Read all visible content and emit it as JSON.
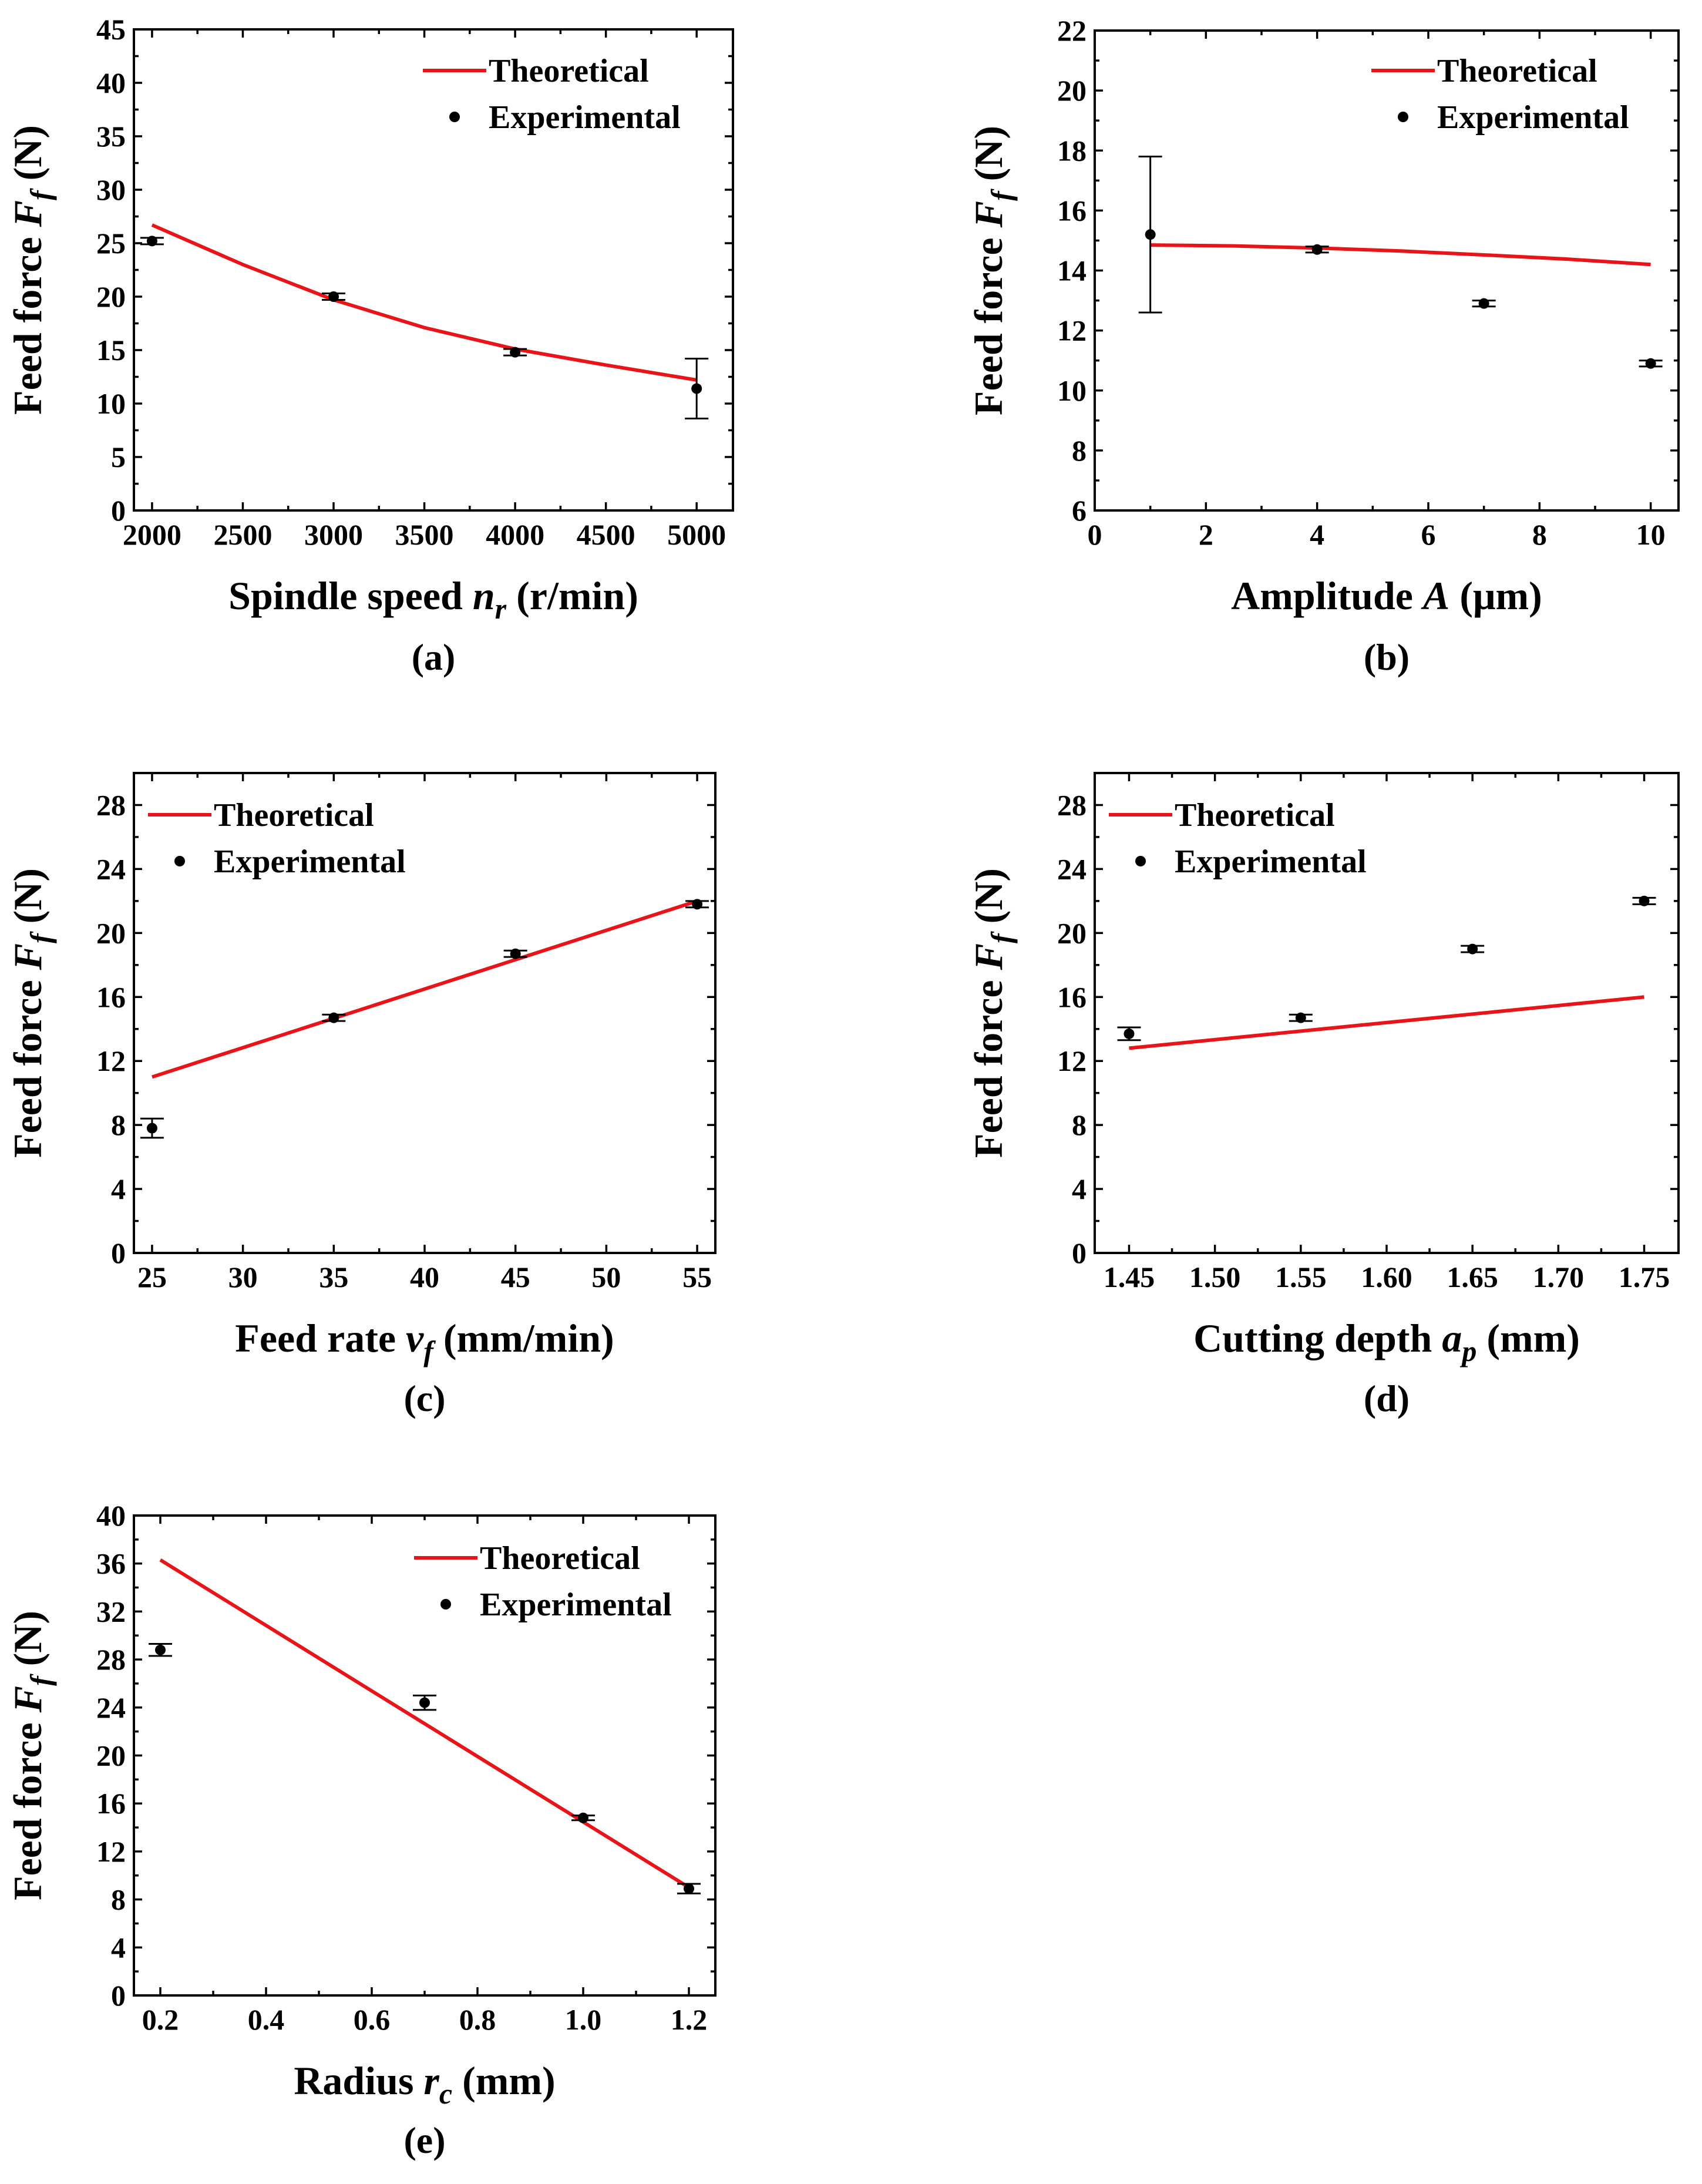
{
  "colors": {
    "theoretical": "#e8141a",
    "experimental": "#000000"
  },
  "chart_data": [
    {
      "id": "a",
      "type": "line",
      "panel_label": "(a)",
      "xlabel_main": "Spindle speed ",
      "xlabel_sym": "n",
      "xlabel_sub": "r",
      "xlabel_unit": "  (r/min)",
      "ylabel_main": "Feed  force ",
      "ylabel_sym": "F",
      "ylabel_sub": "f",
      "ylabel_unit": "  (N)",
      "xlim": [
        1900,
        5200
      ],
      "ylim": [
        0,
        45
      ],
      "xticks": [
        2000,
        2500,
        3000,
        3500,
        4000,
        4500,
        5000
      ],
      "xtick_labels": [
        "2000",
        "2500",
        "3000",
        "3500",
        "4000",
        "4500",
        "5000"
      ],
      "yticks": [
        0,
        5,
        10,
        15,
        20,
        25,
        30,
        35,
        40,
        45
      ],
      "ytick_labels": [
        "0",
        "5",
        "10",
        "15",
        "20",
        "25",
        "30",
        "35",
        "40",
        "45"
      ],
      "legend_pos": "top-right",
      "series": [
        {
          "name": "Theoretical",
          "kind": "line",
          "x": [
            2000,
            2500,
            3000,
            3500,
            4000,
            4500,
            5000
          ],
          "y": [
            26.7,
            23.0,
            19.7,
            17.1,
            15.1,
            13.6,
            12.2
          ]
        },
        {
          "name": "Experimental",
          "kind": "scatter",
          "x": [
            2000,
            3000,
            4000,
            5000
          ],
          "y": [
            25.2,
            20.0,
            14.8,
            11.4
          ],
          "yerr": [
            0.3,
            0.3,
            0.3,
            2.8
          ]
        }
      ]
    },
    {
      "id": "b",
      "type": "line",
      "panel_label": "(b)",
      "xlabel_main": "Amplitude ",
      "xlabel_sym": "A",
      "xlabel_sub": "",
      "xlabel_unit": "  (μm)",
      "ylabel_main": "Feed  force ",
      "ylabel_sym": "F",
      "ylabel_sub": "f",
      "ylabel_unit": "  (N)",
      "xlim": [
        0,
        10.5
      ],
      "ylim": [
        6,
        22
      ],
      "xticks": [
        0,
        2,
        4,
        6,
        8,
        10
      ],
      "xtick_labels": [
        "0",
        "2",
        "4",
        "6",
        "8",
        "10"
      ],
      "yticks": [
        6,
        8,
        10,
        12,
        14,
        16,
        18,
        20,
        22
      ],
      "ytick_labels": [
        "6",
        "8",
        "10",
        "12",
        "14",
        "16",
        "18",
        "20",
        "22"
      ],
      "legend_pos": "top-right",
      "series": [
        {
          "name": "Theoretical",
          "kind": "line",
          "x": [
            1,
            2.5,
            4,
            5.5,
            7,
            8.5,
            10
          ],
          "y": [
            14.85,
            14.82,
            14.75,
            14.65,
            14.52,
            14.38,
            14.2
          ]
        },
        {
          "name": "Experimental",
          "kind": "scatter",
          "x": [
            1,
            4,
            7,
            10
          ],
          "y": [
            15.2,
            14.7,
            12.9,
            10.9
          ],
          "yerr": [
            2.6,
            0.1,
            0.1,
            0.1
          ]
        }
      ]
    },
    {
      "id": "c",
      "type": "line",
      "panel_label": "(c)",
      "xlabel_main": "Feed rate ",
      "xlabel_sym": "v",
      "xlabel_sub": "f",
      "xlabel_unit": " (mm/min)",
      "ylabel_main": "Feed  force ",
      "ylabel_sym": "F",
      "ylabel_sub": "f",
      "ylabel_unit": " (N)",
      "xlim": [
        24,
        56
      ],
      "ylim": [
        0,
        30
      ],
      "xticks": [
        25,
        30,
        35,
        40,
        45,
        50,
        55
      ],
      "xtick_labels": [
        "25",
        "30",
        "35",
        "40",
        "45",
        "50",
        "55"
      ],
      "yticks": [
        0,
        4,
        8,
        12,
        16,
        20,
        24,
        28
      ],
      "ytick_labels": [
        "0",
        "4",
        "8",
        "12",
        "16",
        "20",
        "24",
        "28"
      ],
      "legend_pos": "top-left",
      "series": [
        {
          "name": "Theoretical",
          "kind": "line",
          "x": [
            25,
            55
          ],
          "y": [
            11.0,
            22.0
          ]
        },
        {
          "name": "Experimental",
          "kind": "scatter",
          "x": [
            25,
            35,
            45,
            55
          ],
          "y": [
            7.8,
            14.7,
            18.7,
            21.8
          ],
          "yerr": [
            0.6,
            0.2,
            0.2,
            0.2
          ]
        }
      ]
    },
    {
      "id": "d",
      "type": "line",
      "panel_label": "(d)",
      "xlabel_main": "Cutting depth ",
      "xlabel_sym": "a",
      "xlabel_sub": "p",
      "xlabel_unit": " (mm)",
      "ylabel_main": "Feed  force ",
      "ylabel_sym": "F",
      "ylabel_sub": "f",
      "ylabel_unit": " (N)",
      "xlim": [
        1.43,
        1.77
      ],
      "ylim": [
        0,
        30
      ],
      "xticks": [
        1.45,
        1.5,
        1.55,
        1.6,
        1.65,
        1.7,
        1.75
      ],
      "xtick_labels": [
        "1.45",
        "1.50",
        "1.55",
        "1.60",
        "1.65",
        "1.70",
        "1.75"
      ],
      "yticks": [
        0,
        4,
        8,
        12,
        16,
        20,
        24,
        28
      ],
      "ytick_labels": [
        "0",
        "4",
        "8",
        "12",
        "16",
        "20",
        "24",
        "28"
      ],
      "legend_pos": "top-left",
      "series": [
        {
          "name": "Theoretical",
          "kind": "line",
          "x": [
            1.45,
            1.75
          ],
          "y": [
            12.8,
            16.0
          ]
        },
        {
          "name": "Experimental",
          "kind": "scatter",
          "x": [
            1.45,
            1.55,
            1.65,
            1.75
          ],
          "y": [
            13.7,
            14.7,
            19.0,
            22.0
          ],
          "yerr": [
            0.4,
            0.2,
            0.2,
            0.2
          ]
        }
      ]
    },
    {
      "id": "e",
      "type": "line",
      "panel_label": "(e)",
      "xlabel_main": "Radius ",
      "xlabel_sym": "r",
      "xlabel_sub": "c",
      "xlabel_unit": "  (mm)",
      "ylabel_main": "Feed  force ",
      "ylabel_sym": "F",
      "ylabel_sub": "f",
      "ylabel_unit": " (N)",
      "xlim": [
        0.15,
        1.25
      ],
      "ylim": [
        0,
        40
      ],
      "xticks": [
        0.2,
        0.4,
        0.6,
        0.8,
        1.0,
        1.2
      ],
      "xtick_labels": [
        "0.2",
        "0.4",
        "0.6",
        "0.8",
        "1.0",
        "1.2"
      ],
      "yticks": [
        0,
        4,
        8,
        12,
        16,
        20,
        24,
        28,
        32,
        36,
        40
      ],
      "ytick_labels": [
        "0",
        "4",
        "8",
        "12",
        "16",
        "20",
        "24",
        "28",
        "32",
        "36",
        "40"
      ],
      "legend_pos": "top-right",
      "series": [
        {
          "name": "Theoretical",
          "kind": "line",
          "x": [
            0.2,
            1.2
          ],
          "y": [
            36.3,
            9.0
          ]
        },
        {
          "name": "Experimental",
          "kind": "scatter",
          "x": [
            0.2,
            0.7,
            1.0,
            1.2
          ],
          "y": [
            28.8,
            24.4,
            14.8,
            8.9
          ],
          "yerr": [
            0.5,
            0.6,
            0.2,
            0.4
          ]
        }
      ]
    }
  ]
}
